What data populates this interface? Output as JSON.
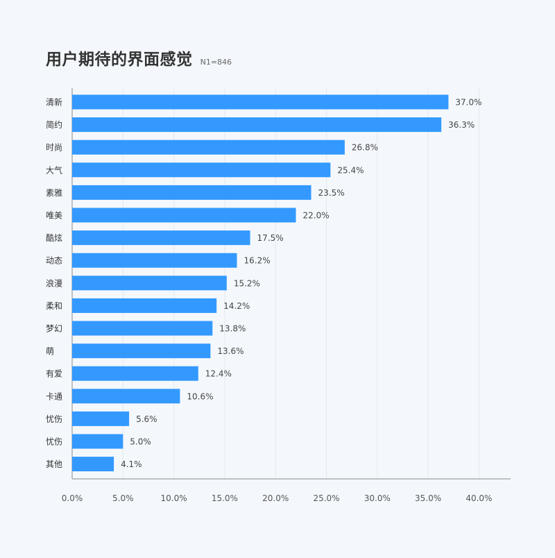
{
  "title": "用户期待的界面感觉",
  "subtitle": "N1=846",
  "chart_data": {
    "type": "bar",
    "orientation": "horizontal",
    "categories": [
      "清新",
      "简约",
      "时尚",
      "大气",
      "素雅",
      "唯美",
      "酷炫",
      "动态",
      "浪漫",
      "柔和",
      "梦幻",
      "萌",
      "有爱",
      "卡通",
      "忧伤",
      "忧伤",
      "其他"
    ],
    "values": [
      37.0,
      36.3,
      26.8,
      25.4,
      23.5,
      22.0,
      17.5,
      16.2,
      15.2,
      14.2,
      13.8,
      13.6,
      12.4,
      10.6,
      5.6,
      5.0,
      4.1
    ],
    "value_labels": [
      "37.0%",
      "36.3%",
      "26.8%",
      "25.4%",
      "23.5%",
      "22.0%",
      "17.5%",
      "16.2%",
      "15.2%",
      "14.2%",
      "13.8%",
      "13.6%",
      "12.4%",
      "10.6%",
      "5.6%",
      "5.0%",
      "4.1%"
    ],
    "xticks": [
      0,
      5,
      10,
      15,
      20,
      25,
      30,
      35,
      40
    ],
    "xtick_labels": [
      "0.0%",
      "5.0%",
      "10.0%",
      "15.0%",
      "20.0%",
      "25.0%",
      "30.0%",
      "35.0%",
      "40.0%"
    ],
    "xlim": [
      0,
      40
    ],
    "grid": "vertical",
    "bar_color": "#3399ff",
    "grid_color": "#e3e8ee",
    "axis_color": "#888888"
  }
}
